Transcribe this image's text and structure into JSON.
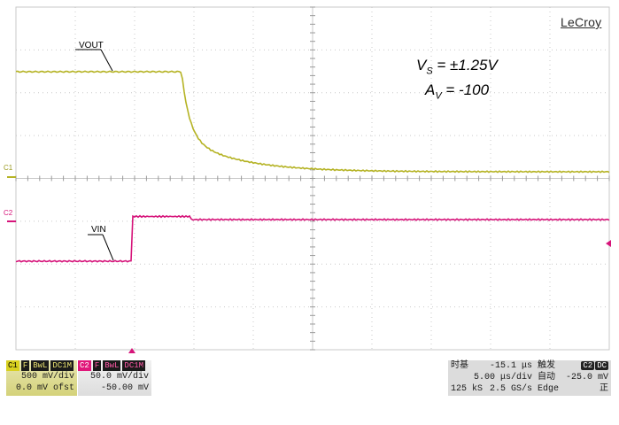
{
  "brand": "LeCroy",
  "annotations": {
    "vs_label": "V",
    "vs_sub": "S",
    "vs_value": " = ±1.25V",
    "av_label": "A",
    "av_sub": "V",
    "av_value": " = -100"
  },
  "traces": {
    "vout_label": "VOUT",
    "vin_label": "VIN",
    "c1_marker": "C1",
    "c2_marker": "C2"
  },
  "colors": {
    "grid": "#c9c9c9",
    "ch1": "#b5b324",
    "ch2": "#d6147a"
  },
  "ch1": {
    "id": "C1",
    "flag": "F",
    "bw": "BwL",
    "coupling": "DC1M",
    "scale": "500 mV/div",
    "offset": "0.0 mV ofst"
  },
  "ch2": {
    "id": "C2",
    "flag": "F",
    "bw": "BwL",
    "coupling": "DC1M",
    "scale": "50.0 mV/div",
    "offset": "-50.00 mV"
  },
  "timebase": {
    "label": "时基",
    "delay": "-15.1 μs",
    "scale": "5.00 μs/div",
    "samples": "125 kS",
    "rate": "2.5 GS/s"
  },
  "trigger": {
    "label": "触发",
    "source": "C2",
    "coupling": "DC",
    "mode": "自动",
    "level": "-25.0 mV",
    "type": "Edge",
    "slope": "正"
  }
}
